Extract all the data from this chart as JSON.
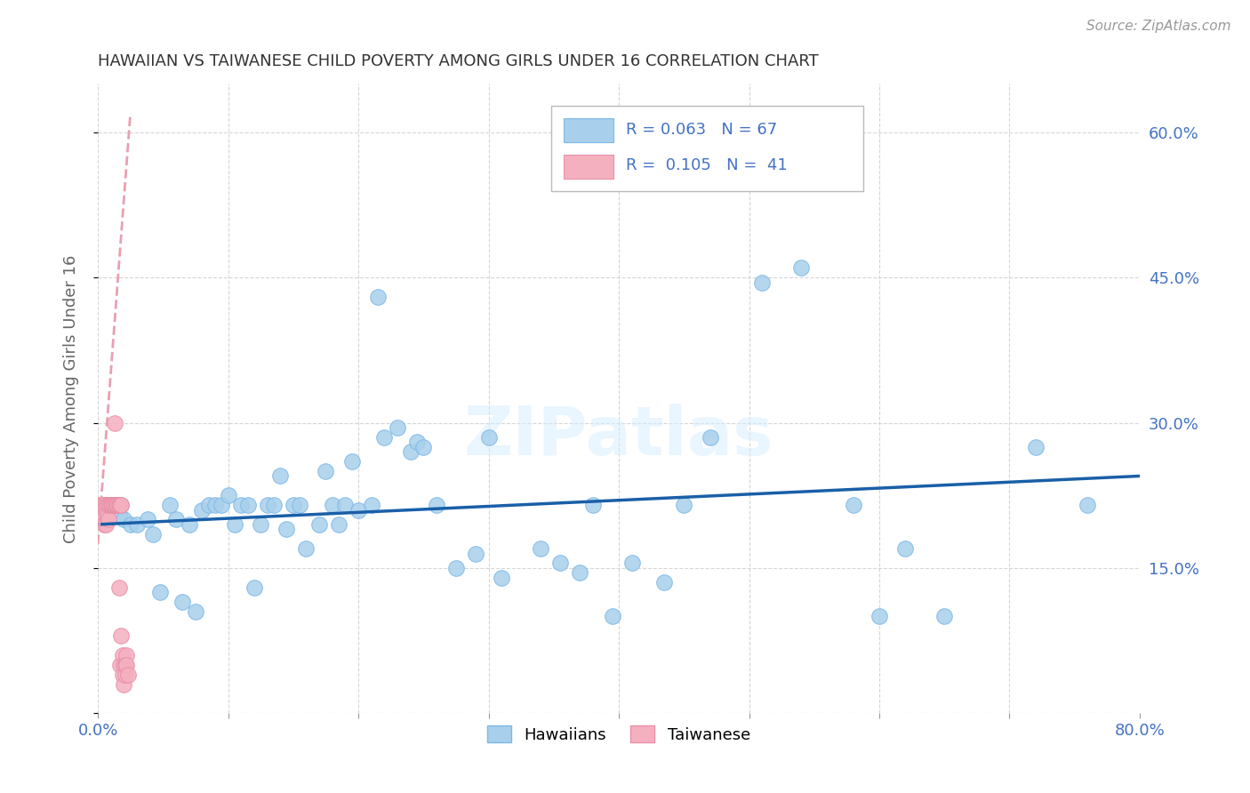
{
  "title": "HAWAIIAN VS TAIWANESE CHILD POVERTY AMONG GIRLS UNDER 16 CORRELATION CHART",
  "source": "Source: ZipAtlas.com",
  "ylabel": "Child Poverty Among Girls Under 16",
  "xlim": [
    0.0,
    0.8
  ],
  "ylim": [
    0.0,
    0.65
  ],
  "watermark": "ZIPatlas",
  "blue_scatter_color": "#A8D0EC",
  "blue_edge_color": "#7EB8E8",
  "pink_scatter_color": "#F5B0C0",
  "pink_edge_color": "#E890A8",
  "line_blue": "#1a5fa8",
  "line_pink": "#E8A0B0",
  "tick_color": "#4472C4",
  "title_color": "#333333",
  "source_color": "#999999",
  "ylabel_color": "#666666",
  "hawaiians_x": [
    0.016,
    0.018,
    0.02,
    0.025,
    0.03,
    0.038,
    0.042,
    0.048,
    0.055,
    0.06,
    0.065,
    0.07,
    0.075,
    0.08,
    0.085,
    0.09,
    0.095,
    0.1,
    0.105,
    0.11,
    0.115,
    0.12,
    0.125,
    0.13,
    0.135,
    0.14,
    0.145,
    0.15,
    0.155,
    0.16,
    0.17,
    0.175,
    0.18,
    0.185,
    0.19,
    0.195,
    0.2,
    0.21,
    0.215,
    0.22,
    0.23,
    0.24,
    0.245,
    0.25,
    0.26,
    0.275,
    0.29,
    0.3,
    0.31,
    0.34,
    0.355,
    0.37,
    0.38,
    0.395,
    0.41,
    0.435,
    0.45,
    0.47,
    0.49,
    0.51,
    0.54,
    0.58,
    0.6,
    0.62,
    0.65,
    0.72,
    0.76
  ],
  "hawaiians_y": [
    0.205,
    0.215,
    0.2,
    0.195,
    0.195,
    0.2,
    0.185,
    0.125,
    0.215,
    0.2,
    0.115,
    0.195,
    0.105,
    0.21,
    0.215,
    0.215,
    0.215,
    0.225,
    0.195,
    0.215,
    0.215,
    0.13,
    0.195,
    0.215,
    0.215,
    0.245,
    0.19,
    0.215,
    0.215,
    0.17,
    0.195,
    0.25,
    0.215,
    0.195,
    0.215,
    0.26,
    0.21,
    0.215,
    0.43,
    0.285,
    0.295,
    0.27,
    0.28,
    0.275,
    0.215,
    0.15,
    0.165,
    0.285,
    0.14,
    0.17,
    0.155,
    0.145,
    0.215,
    0.1,
    0.155,
    0.135,
    0.215,
    0.285,
    0.58,
    0.445,
    0.46,
    0.215,
    0.1,
    0.17,
    0.1,
    0.275,
    0.215
  ],
  "taiwanese_x": [
    0.002,
    0.003,
    0.004,
    0.004,
    0.005,
    0.005,
    0.006,
    0.006,
    0.007,
    0.007,
    0.008,
    0.008,
    0.009,
    0.009,
    0.01,
    0.01,
    0.011,
    0.011,
    0.012,
    0.012,
    0.013,
    0.013,
    0.014,
    0.014,
    0.015,
    0.015,
    0.016,
    0.016,
    0.017,
    0.017,
    0.018,
    0.018,
    0.019,
    0.019,
    0.02,
    0.02,
    0.021,
    0.021,
    0.022,
    0.022,
    0.023
  ],
  "taiwanese_y": [
    0.215,
    0.215,
    0.215,
    0.2,
    0.215,
    0.195,
    0.195,
    0.215,
    0.215,
    0.205,
    0.215,
    0.2,
    0.215,
    0.215,
    0.215,
    0.215,
    0.215,
    0.215,
    0.215,
    0.215,
    0.3,
    0.215,
    0.215,
    0.215,
    0.215,
    0.215,
    0.215,
    0.13,
    0.215,
    0.05,
    0.215,
    0.08,
    0.06,
    0.04,
    0.05,
    0.03,
    0.05,
    0.04,
    0.06,
    0.05,
    0.04
  ],
  "pink_line_x0": 0.0,
  "pink_line_x1": 0.025,
  "pink_line_y0": 0.175,
  "pink_line_y1": 0.62,
  "blue_line_x0": 0.0,
  "blue_line_x1": 0.8,
  "blue_line_y0": 0.195,
  "blue_line_y1": 0.245
}
